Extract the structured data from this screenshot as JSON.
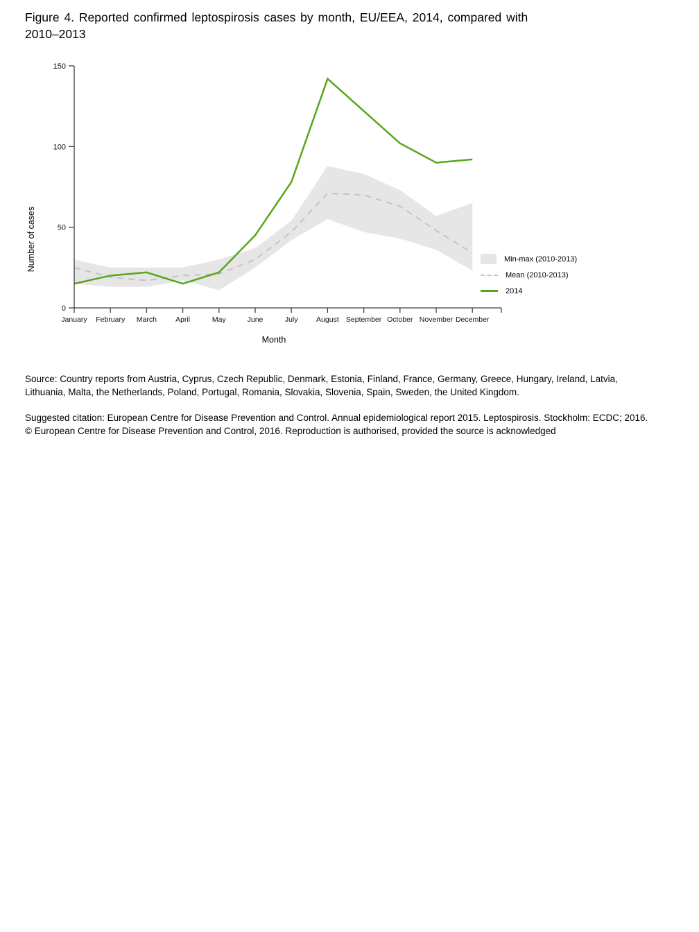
{
  "figure": {
    "title_line1": "Figure 4. Reported confirmed leptospirosis cases by month, EU/EEA, 2014, compared with",
    "title_line2": "2010–2013"
  },
  "chart_data": {
    "type": "line",
    "title": "Reported confirmed leptospirosis cases by month, EU/EEA, 2014, compared with 2010-2013",
    "categories": [
      "January",
      "February",
      "March",
      "April",
      "May",
      "June",
      "July",
      "August",
      "September",
      "October",
      "November",
      "December"
    ],
    "series": [
      {
        "name": "Min-max (2010-2013)",
        "type": "band",
        "max": [
          30,
          25,
          25,
          25,
          30,
          37,
          54,
          88,
          83,
          73,
          57,
          65
        ],
        "min": [
          15,
          13,
          13,
          17,
          11,
          25,
          42,
          55,
          47,
          43,
          36,
          23
        ],
        "color": "#e6e6e6"
      },
      {
        "name": "Mean (2010-2013)",
        "type": "line",
        "style": "dashed",
        "values": [
          25,
          19,
          17,
          20,
          21,
          30,
          47,
          71,
          70,
          63,
          48,
          34
        ],
        "color": "#c4c4c4"
      },
      {
        "name": "2014",
        "type": "line",
        "style": "solid",
        "values": [
          15,
          20,
          22,
          15,
          22,
          45,
          78,
          142,
          122,
          102,
          90,
          92
        ],
        "color": "#58a618"
      }
    ],
    "xlabel": "Month",
    "ylabel": "Number of cases",
    "yticks": [
      0,
      50,
      100,
      150
    ],
    "ylim": [
      0,
      150
    ],
    "grid": false,
    "legend_position": "right-of-plot-lower",
    "axis_color": "#3f3f3f",
    "tick_label_color": "#111111"
  },
  "footer": {
    "source": "Source: Country reports from Austria, Cyprus, Czech Republic, Denmark, Estonia, Finland, France, Germany, Greece, Hungary, Ireland, Latvia, Lithuania, Malta, the Netherlands, Poland, Portugal, Romania, Slovakia, Slovenia, Spain, Sweden, the United Kingdom.",
    "citation": "Suggested citation: European Centre for Disease Prevention and Control. Annual epidemiological report 2015. Leptospirosis. Stockholm: ECDC; 2016.",
    "copyright": "© European Centre for Disease Prevention and Control, 2016. Reproduction is authorised, provided the source is acknowledged"
  }
}
